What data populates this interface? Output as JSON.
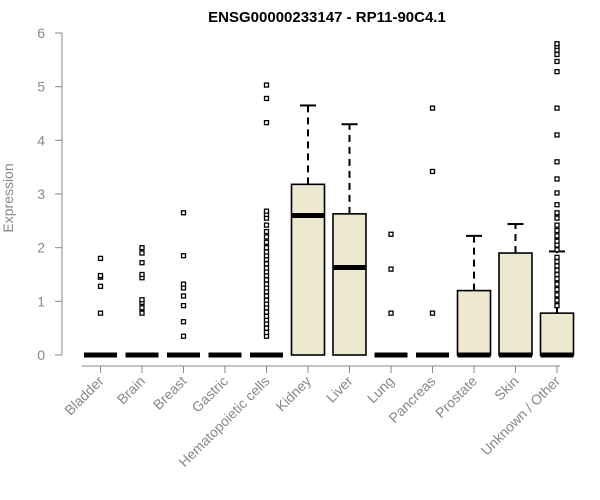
{
  "chart_data": {
    "type": "boxplot",
    "title": "ENSG00000233147 - RP11-90C4.1",
    "xlabel": "",
    "ylabel": "Expression",
    "ylim": [
      0,
      6
    ],
    "yticks": [
      0,
      1,
      2,
      3,
      4,
      5,
      6
    ],
    "box_fill": "#EDE8D0",
    "categories": [
      "Bladder",
      "Brain",
      "Breast",
      "Gastric",
      "Hematopoietic cells",
      "Kidney",
      "Liver",
      "Lung",
      "Pancreas",
      "Prostate",
      "Skin",
      "Unknown / Other"
    ],
    "boxes": [
      {
        "min": 0,
        "q1": 0,
        "median": 0,
        "q3": 0,
        "max": 0,
        "outliers": [
          0.78,
          1.28,
          1.45,
          1.48,
          1.8
        ]
      },
      {
        "min": 0,
        "q1": 0,
        "median": 0,
        "q3": 0,
        "max": 0,
        "outliers": [
          0.78,
          0.88,
          0.98,
          1.03,
          1.44,
          1.5,
          1.72,
          1.9,
          2.0
        ]
      },
      {
        "min": 0,
        "q1": 0,
        "median": 0,
        "q3": 0,
        "max": 0,
        "outliers": [
          0.35,
          0.62,
          0.92,
          1.1,
          1.25,
          1.32,
          1.85,
          2.65
        ]
      },
      {
        "min": 0,
        "q1": 0,
        "median": 0,
        "q3": 0,
        "max": 0,
        "outliers": []
      },
      {
        "min": 0,
        "q1": 0,
        "median": 0,
        "q3": 0,
        "max": 0,
        "outliers": [
          0.35,
          0.42,
          0.5,
          0.58,
          0.65,
          0.72,
          0.8,
          0.88,
          0.95,
          1.02,
          1.1,
          1.18,
          1.25,
          1.32,
          1.4,
          1.48,
          1.55,
          1.62,
          1.7,
          1.78,
          1.85,
          1.92,
          2.0,
          2.1,
          2.2,
          2.3,
          2.42,
          2.55,
          2.62,
          2.68,
          4.33,
          4.78,
          5.03
        ]
      },
      {
        "min": 0,
        "q1": 0,
        "median": 2.6,
        "q3": 3.18,
        "max": 4.65,
        "outliers": []
      },
      {
        "min": 0,
        "q1": 0,
        "median": 1.63,
        "q3": 2.63,
        "max": 4.3,
        "outliers": []
      },
      {
        "min": 0,
        "q1": 0,
        "median": 0,
        "q3": 0,
        "max": 0,
        "outliers": [
          0.78,
          1.6,
          2.25
        ]
      },
      {
        "min": 0,
        "q1": 0,
        "median": 0,
        "q3": 0,
        "max": 0,
        "outliers": [
          0.78,
          3.42,
          4.6
        ]
      },
      {
        "min": 0,
        "q1": 0,
        "median": 0,
        "q3": 1.2,
        "max": 2.22,
        "outliers": []
      },
      {
        "min": 0,
        "q1": 0,
        "median": 0,
        "q3": 1.9,
        "max": 2.44,
        "outliers": []
      },
      {
        "min": 0,
        "q1": 0,
        "median": 0,
        "q3": 0.78,
        "max": 1.93,
        "outliers": [
          0.92,
          1.02,
          1.12,
          1.22,
          1.32,
          1.42,
          1.5,
          1.58,
          1.66,
          1.74,
          1.82,
          1.96,
          2.05,
          2.12,
          2.22,
          2.32,
          2.42,
          2.55,
          2.65,
          2.8,
          3.02,
          3.28,
          3.6,
          4.1,
          4.6,
          5.28,
          5.47,
          5.6,
          5.68,
          5.75,
          5.8
        ]
      }
    ]
  }
}
